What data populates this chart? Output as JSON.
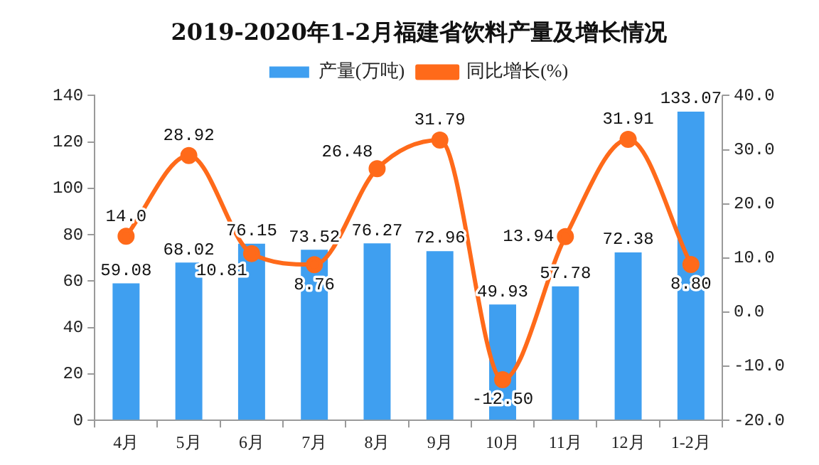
{
  "chart_data": {
    "type": "bar",
    "title": "2019-2020年1-2月福建省饮料产量及增长情况",
    "categories": [
      "4月",
      "5月",
      "6月",
      "7月",
      "8月",
      "9月",
      "10月",
      "11月",
      "12月",
      "1-2月"
    ],
    "series": [
      {
        "name": "产量(万吨)",
        "color": "#3f9ff0",
        "values": [
          59.08,
          68.02,
          76.15,
          73.52,
          76.27,
          72.96,
          49.93,
          57.78,
          72.38,
          133.07
        ],
        "value_labels": [
          "59.08",
          "68.02",
          "76.15",
          "73.52",
          "76.27",
          "72.96",
          "49.93",
          "57.78",
          "72.38",
          "133.07"
        ]
      },
      {
        "name": "同比增长(%)",
        "type": "line",
        "axis": "y2",
        "color": "#ff6a1a",
        "values": [
          14.0,
          28.92,
          10.81,
          8.76,
          26.48,
          31.79,
          -12.5,
          13.94,
          31.91,
          8.8
        ],
        "value_labels": [
          "14.0",
          "28.92",
          "10.81",
          "8.76",
          "26.48",
          "31.79",
          "-12.50",
          "13.94",
          "31.91",
          "8.80"
        ]
      }
    ],
    "ylim": [
      0,
      140
    ],
    "yticks": [
      0,
      20,
      40,
      60,
      80,
      100,
      120,
      140
    ],
    "y2lim": [
      -20,
      40
    ],
    "y2ticks": [
      {
        "value": -20,
        "label": "-20.0"
      },
      {
        "value": -10,
        "label": "-10.0"
      },
      {
        "value": 0,
        "label": "0.0"
      },
      {
        "value": 10,
        "label": "10.0"
      },
      {
        "value": 20,
        "label": "20.0"
      },
      {
        "value": 30,
        "label": "30.0"
      },
      {
        "value": 40,
        "label": "40.0"
      }
    ],
    "legend": "top",
    "grid": false,
    "marker": "circle",
    "line_style": "solid"
  }
}
